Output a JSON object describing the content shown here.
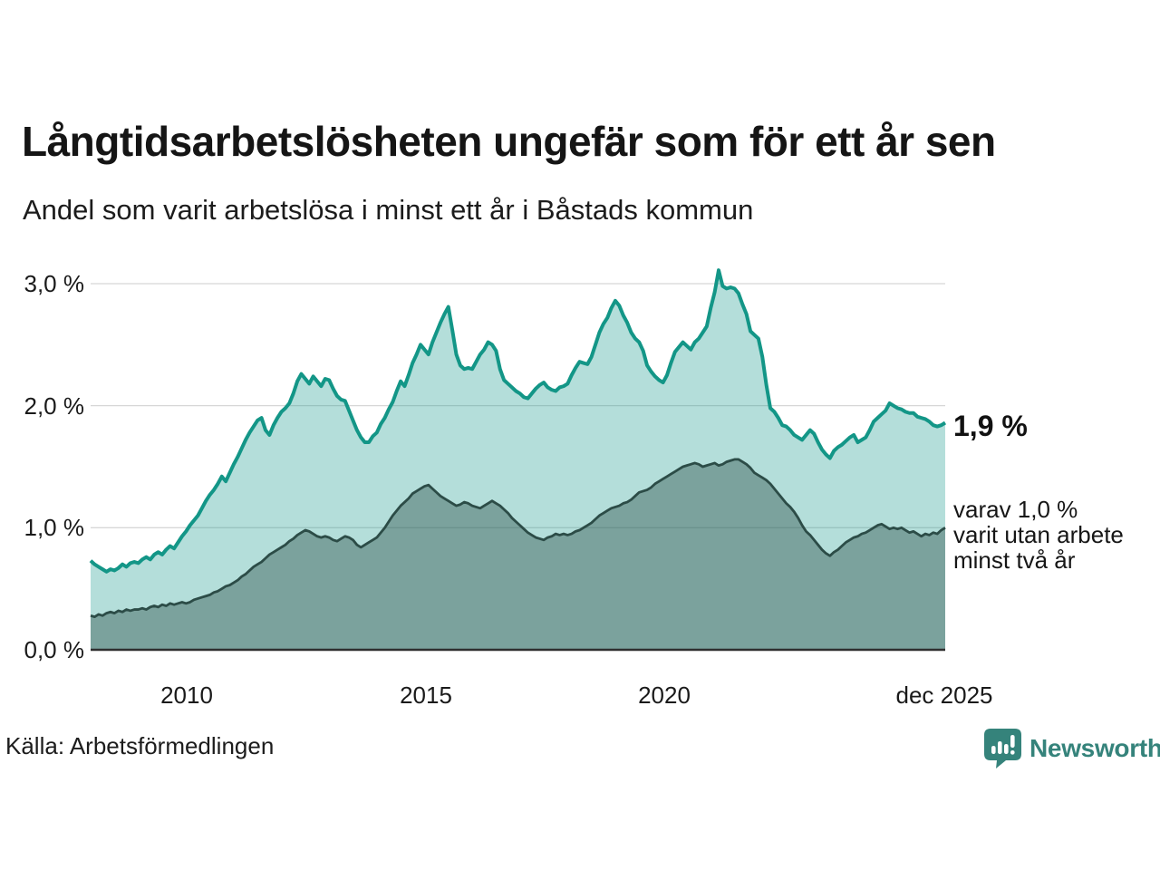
{
  "header": {
    "title": "Långtidsarbetslösheten ungefär som för ett år sen",
    "subtitle": "Andel som varit arbetslösa i minst ett år i Båstads kommun"
  },
  "footer": {
    "source": "Källa: Arbetsförmedlingen",
    "brand_name": "Newsworthy",
    "brand_icon": "bar-chart-speech-bubble-icon"
  },
  "colors": {
    "series_total_line": "#139687",
    "series_total_fill": "#15998b",
    "series_two_year_line": "#2c4c47",
    "series_two_year_fill": "#2e4f4a",
    "gridline": "#d7d7d7",
    "baseline": "#2f2f2f",
    "brand_teal": "#35837b",
    "text": "#111111"
  },
  "chart_data": {
    "type": "area",
    "title": "Långtidsarbetslösheten ungefär som för ett år sen",
    "subtitle": "Andel som varit arbetslösa i minst ett år i Båstads kommun",
    "xlabel": "",
    "ylabel": "",
    "x_start": "2008-01",
    "x_end": "2025-12",
    "interval": "monthly",
    "x_tick_labels": [
      "2010",
      "2015",
      "2020",
      "dec 2025"
    ],
    "y_tick_labels": [
      "3,0 %",
      "2,0 %",
      "1,0 %",
      "0,0 %"
    ],
    "y_tick_values": [
      3.0,
      2.0,
      1.0,
      0.0
    ],
    "ylim": [
      0,
      3.13
    ],
    "grid": "horizontal",
    "legend_position": "right-annotations",
    "annotations": {
      "latest_total": "1,9 %",
      "two_year_note_lines": [
        "varav 1,0 %",
        "varit utan arbete",
        "minst två år"
      ]
    },
    "series": [
      {
        "name": "Andel arbetslösa minst ett år",
        "latest_value": 1.9,
        "values": [
          0.73,
          0.7,
          0.68,
          0.66,
          0.64,
          0.66,
          0.65,
          0.67,
          0.7,
          0.68,
          0.71,
          0.72,
          0.71,
          0.74,
          0.76,
          0.74,
          0.78,
          0.8,
          0.78,
          0.82,
          0.85,
          0.83,
          0.88,
          0.93,
          0.97,
          1.02,
          1.06,
          1.1,
          1.16,
          1.22,
          1.27,
          1.31,
          1.36,
          1.42,
          1.38,
          1.45,
          1.52,
          1.58,
          1.65,
          1.72,
          1.78,
          1.83,
          1.88,
          1.9,
          1.8,
          1.76,
          1.84,
          1.9,
          1.95,
          1.98,
          2.02,
          2.1,
          2.2,
          2.26,
          2.22,
          2.18,
          2.24,
          2.2,
          2.16,
          2.22,
          2.21,
          2.14,
          2.08,
          2.05,
          2.04,
          1.96,
          1.88,
          1.8,
          1.74,
          1.7,
          1.7,
          1.75,
          1.78,
          1.85,
          1.9,
          1.97,
          2.03,
          2.12,
          2.2,
          2.16,
          2.25,
          2.35,
          2.42,
          2.5,
          2.46,
          2.42,
          2.52,
          2.6,
          2.68,
          2.75,
          2.81,
          2.62,
          2.42,
          2.33,
          2.3,
          2.31,
          2.3,
          2.36,
          2.42,
          2.46,
          2.52,
          2.5,
          2.45,
          2.3,
          2.21,
          2.18,
          2.15,
          2.12,
          2.1,
          2.07,
          2.06,
          2.1,
          2.14,
          2.17,
          2.19,
          2.15,
          2.13,
          2.12,
          2.15,
          2.16,
          2.18,
          2.25,
          2.31,
          2.36,
          2.35,
          2.34,
          2.4,
          2.5,
          2.6,
          2.67,
          2.72,
          2.8,
          2.86,
          2.82,
          2.74,
          2.68,
          2.6,
          2.55,
          2.52,
          2.45,
          2.33,
          2.28,
          2.24,
          2.21,
          2.19,
          2.25,
          2.35,
          2.44,
          2.48,
          2.52,
          2.49,
          2.46,
          2.52,
          2.55,
          2.6,
          2.65,
          2.8,
          2.93,
          3.11,
          2.98,
          2.96,
          2.97,
          2.96,
          2.92,
          2.83,
          2.75,
          2.61,
          2.58,
          2.55,
          2.4,
          2.17,
          1.98,
          1.95,
          1.9,
          1.84,
          1.83,
          1.8,
          1.76,
          1.74,
          1.72,
          1.76,
          1.8,
          1.77,
          1.7,
          1.64,
          1.6,
          1.57,
          1.63,
          1.66,
          1.68,
          1.71,
          1.74,
          1.76,
          1.7,
          1.72,
          1.74,
          1.8,
          1.87,
          1.9,
          1.93,
          1.96,
          2.02,
          2.0,
          1.98,
          1.97,
          1.95,
          1.94,
          1.94,
          1.91,
          1.9,
          1.89,
          1.87,
          1.84,
          1.83,
          1.84,
          1.86
        ]
      },
      {
        "name": "varav utan arbete minst två år",
        "latest_value": 1.0,
        "values": [
          0.28,
          0.27,
          0.29,
          0.28,
          0.3,
          0.31,
          0.3,
          0.32,
          0.31,
          0.33,
          0.32,
          0.33,
          0.33,
          0.34,
          0.33,
          0.35,
          0.36,
          0.35,
          0.37,
          0.36,
          0.38,
          0.37,
          0.38,
          0.39,
          0.38,
          0.39,
          0.41,
          0.42,
          0.43,
          0.44,
          0.45,
          0.47,
          0.48,
          0.5,
          0.52,
          0.53,
          0.55,
          0.57,
          0.6,
          0.62,
          0.65,
          0.68,
          0.7,
          0.72,
          0.75,
          0.78,
          0.8,
          0.82,
          0.84,
          0.86,
          0.89,
          0.91,
          0.94,
          0.96,
          0.98,
          0.97,
          0.95,
          0.93,
          0.92,
          0.93,
          0.92,
          0.9,
          0.89,
          0.91,
          0.93,
          0.92,
          0.9,
          0.86,
          0.84,
          0.86,
          0.88,
          0.9,
          0.92,
          0.96,
          1.0,
          1.05,
          1.1,
          1.14,
          1.18,
          1.21,
          1.24,
          1.28,
          1.3,
          1.32,
          1.34,
          1.35,
          1.32,
          1.29,
          1.26,
          1.24,
          1.22,
          1.2,
          1.18,
          1.19,
          1.21,
          1.2,
          1.18,
          1.17,
          1.16,
          1.18,
          1.2,
          1.22,
          1.2,
          1.18,
          1.15,
          1.12,
          1.08,
          1.05,
          1.02,
          0.99,
          0.96,
          0.94,
          0.92,
          0.91,
          0.9,
          0.92,
          0.93,
          0.95,
          0.94,
          0.95,
          0.94,
          0.95,
          0.97,
          0.98,
          1.0,
          1.02,
          1.04,
          1.07,
          1.1,
          1.12,
          1.14,
          1.16,
          1.17,
          1.18,
          1.2,
          1.21,
          1.23,
          1.26,
          1.29,
          1.3,
          1.31,
          1.33,
          1.36,
          1.38,
          1.4,
          1.42,
          1.44,
          1.46,
          1.48,
          1.5,
          1.51,
          1.52,
          1.53,
          1.52,
          1.5,
          1.51,
          1.52,
          1.53,
          1.51,
          1.52,
          1.54,
          1.55,
          1.56,
          1.56,
          1.54,
          1.52,
          1.49,
          1.45,
          1.43,
          1.41,
          1.39,
          1.36,
          1.32,
          1.28,
          1.24,
          1.2,
          1.17,
          1.13,
          1.08,
          1.02,
          0.97,
          0.94,
          0.9,
          0.86,
          0.82,
          0.79,
          0.77,
          0.8,
          0.82,
          0.85,
          0.88,
          0.9,
          0.92,
          0.93,
          0.95,
          0.96,
          0.98,
          1.0,
          1.02,
          1.03,
          1.01,
          0.99,
          1.0,
          0.99,
          1.0,
          0.98,
          0.96,
          0.97,
          0.95,
          0.93,
          0.95,
          0.94,
          0.96,
          0.95,
          0.98,
          1.0
        ]
      }
    ]
  }
}
